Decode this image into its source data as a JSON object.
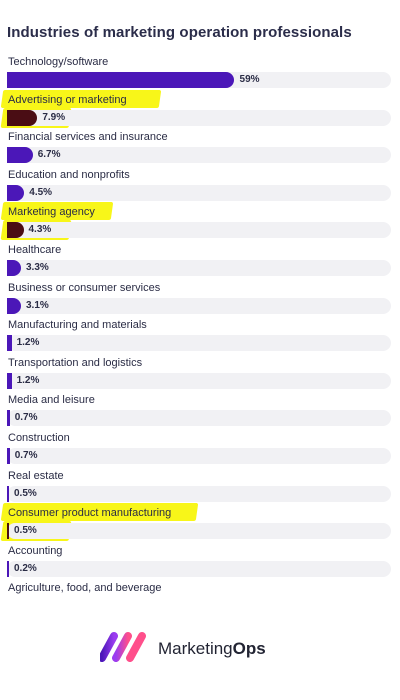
{
  "chart_data": {
    "type": "bar",
    "orientation": "horizontal",
    "title": "Industries of marketing operation professionals",
    "categories": [
      "Technology/software",
      "Advertising or marketing",
      "Financial services and insurance",
      "Education and nonprofits",
      "Marketing agency",
      "Healthcare",
      "Business or consumer services",
      "Manufacturing and materials",
      "Transportation and logistics",
      "Media and leisure",
      "Construction",
      "Real estate",
      "Consumer product manufacturing",
      "Accounting",
      "Agriculture, food, and beverage"
    ],
    "values": [
      59,
      7.9,
      6.7,
      4.5,
      4.3,
      3.3,
      3.1,
      1.2,
      1.2,
      0.7,
      0.7,
      0.5,
      0.5,
      0.2,
      null
    ],
    "value_labels": [
      "59%",
      "7.9%",
      "6.7%",
      "4.5%",
      "4.3%",
      "3.3%",
      "3.1%",
      "1.2%",
      "1.2%",
      "0.7%",
      "0.7%",
      "0.5%",
      "0.5%",
      "0.2%",
      ""
    ],
    "highlighted": [
      "Advertising or marketing",
      "Marketing agency",
      "Consumer product manufacturing"
    ],
    "xlim": [
      0,
      100
    ],
    "bar_color": "#4b17b8",
    "highlight_bar_color": "#4a0d14",
    "highlight_color": "#f7f500",
    "track_color": "#f1f1f4"
  },
  "brand": {
    "name_regular": "Marketing",
    "name_bold": "Ops",
    "colors": [
      "#ff4f8b",
      "#9b3cf0",
      "#4b17b8"
    ]
  }
}
